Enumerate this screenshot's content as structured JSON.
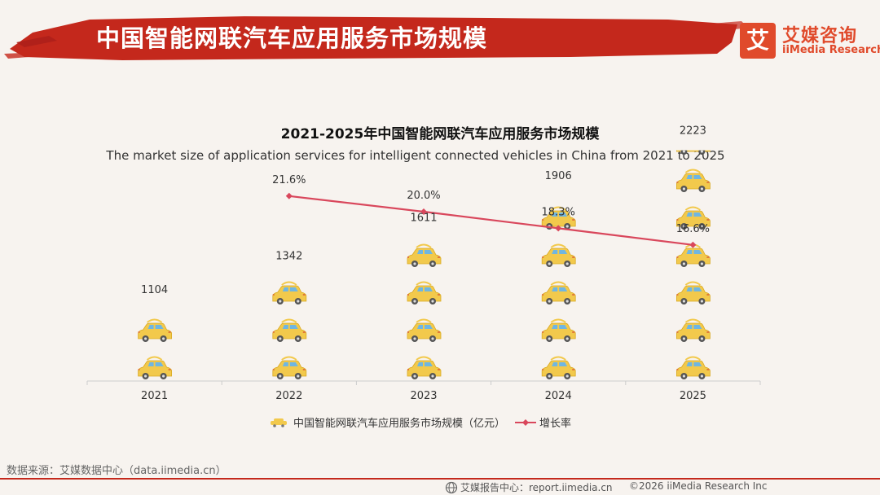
{
  "header": {
    "title": "中国智能网联汽车应用服务市场规模",
    "logo_cn": "艾媒咨询",
    "logo_en": "iiMedia Research",
    "logo_mark": "艾"
  },
  "chart_data": {
    "type": "bar",
    "title": "2021-2025年中国智能网联汽车应用服务市场规模",
    "subtitle": "The market size of application services for intelligent connected vehicles in China from 2021 to 2025",
    "categories": [
      "2021",
      "2022",
      "2023",
      "2024",
      "2025"
    ],
    "series": [
      {
        "name": "中国智能网联汽车应用服务市场规模（亿元）",
        "type": "pictorial-bar",
        "values": [
          1104,
          1342,
          1611,
          1906,
          2223
        ],
        "value_labels": [
          "1104",
          "1342",
          "1611",
          "1906",
          "2223"
        ],
        "color": "#f2c94c"
      },
      {
        "name": "增长率",
        "type": "line",
        "values": [
          null,
          21.6,
          20.0,
          18.3,
          16.6
        ],
        "value_labels": [
          "",
          "21.6%",
          "20.0%",
          "18.3%",
          "16.6%"
        ],
        "color": "#d9475c"
      }
    ],
    "grid": false,
    "legend": "bottom"
  },
  "footer": {
    "source": "数据来源：艾媒数据中心（data.iimedia.cn）",
    "report": "艾媒报告中心：report.iimedia.cn",
    "copyright": "©2026  iiMedia Research  Inc"
  }
}
